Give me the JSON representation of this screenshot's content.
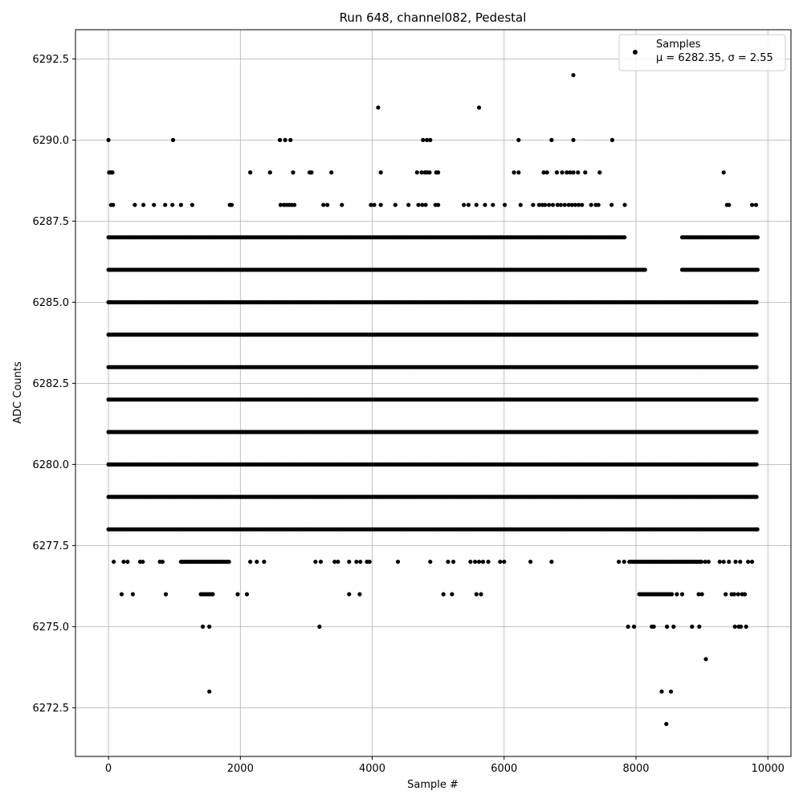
{
  "chart_data": {
    "type": "scatter",
    "title": "Run 648, channel082, Pedestal",
    "xlabel": "Sample #",
    "ylabel": "ADC Counts",
    "xlim": [
      -500,
      10350
    ],
    "ylim": [
      6271,
      6293.4
    ],
    "x_ticks": [
      0,
      2000,
      4000,
      6000,
      8000,
      10000
    ],
    "x_tick_labels": [
      "0",
      "2000",
      "4000",
      "6000",
      "8000",
      "10000"
    ],
    "y_ticks": [
      6272.5,
      6275.0,
      6277.5,
      6280.0,
      6282.5,
      6285.0,
      6287.5,
      6290.0,
      6292.5
    ],
    "y_tick_labels": [
      "6272.5",
      "6275.0",
      "6277.5",
      "6280.0",
      "6282.5",
      "6285.0",
      "6287.5",
      "6290.0",
      "6292.5"
    ],
    "grid": true,
    "legend_position": "top-right",
    "marker_color": "#000000",
    "series": [
      {
        "name": "Samples",
        "stats_label": "μ = 6282.35, σ = 2.55",
        "mean": 6282.35,
        "std": 2.55,
        "x_range": [
          0,
          9850
        ],
        "levels": [
          {
            "y": 6280,
            "spans": [
              [
                0,
                9850
              ]
            ]
          },
          {
            "y": 6281,
            "spans": [
              [
                0,
                9850
              ]
            ]
          },
          {
            "y": 6282,
            "spans": [
              [
                0,
                9850
              ]
            ]
          },
          {
            "y": 6283,
            "spans": [
              [
                0,
                9850
              ]
            ]
          },
          {
            "y": 6284,
            "spans": [
              [
                0,
                9850
              ]
            ]
          },
          {
            "y": 6285,
            "spans": [
              [
                0,
                9850
              ]
            ]
          },
          {
            "y": 6286,
            "spans": [
              [
                0,
                8150
              ],
              [
                8700,
                9850
              ]
            ]
          },
          {
            "y": 6287,
            "spans": [
              [
                0,
                7850
              ],
              [
                8700,
                9850
              ]
            ]
          },
          {
            "y": 6279,
            "spans": [
              [
                0,
                9850
              ]
            ]
          },
          {
            "y": 6278,
            "spans": [
              [
                0,
                9850
              ]
            ]
          },
          {
            "y": 6277,
            "spans": [
              [
                1100,
                1850
              ],
              [
                7900,
                9000
              ]
            ]
          },
          {
            "y": 6276,
            "spans": [
              [
                1400,
                1600
              ],
              [
                8050,
                8550
              ]
            ]
          }
        ],
        "points": [
          [
            0,
            6290
          ],
          [
            980,
            6290
          ],
          [
            2600,
            6290
          ],
          [
            2680,
            6290
          ],
          [
            2760,
            6290
          ],
          [
            4770,
            6290
          ],
          [
            4830,
            6290
          ],
          [
            4880,
            6290
          ],
          [
            6220,
            6290
          ],
          [
            6720,
            6290
          ],
          [
            7050,
            6290
          ],
          [
            7640,
            6290
          ],
          [
            4090,
            6291
          ],
          [
            5620,
            6291
          ],
          [
            7050,
            6292
          ],
          [
            10,
            6289
          ],
          [
            40,
            6289
          ],
          [
            60,
            6289
          ],
          [
            2150,
            6289
          ],
          [
            2450,
            6289
          ],
          [
            2800,
            6289
          ],
          [
            3050,
            6289
          ],
          [
            3080,
            6289
          ],
          [
            3380,
            6289
          ],
          [
            4130,
            6289
          ],
          [
            4680,
            6289
          ],
          [
            4750,
            6289
          ],
          [
            4800,
            6289
          ],
          [
            4830,
            6289
          ],
          [
            4870,
            6289
          ],
          [
            4970,
            6289
          ],
          [
            5000,
            6289
          ],
          [
            6150,
            6289
          ],
          [
            6220,
            6289
          ],
          [
            6600,
            6289
          ],
          [
            6650,
            6289
          ],
          [
            6800,
            6289
          ],
          [
            6880,
            6289
          ],
          [
            6950,
            6289
          ],
          [
            7000,
            6289
          ],
          [
            7050,
            6289
          ],
          [
            7120,
            6289
          ],
          [
            7230,
            6289
          ],
          [
            7450,
            6289
          ],
          [
            9330,
            6289
          ],
          [
            40,
            6288
          ],
          [
            70,
            6288
          ],
          [
            400,
            6288
          ],
          [
            530,
            6288
          ],
          [
            690,
            6288
          ],
          [
            860,
            6288
          ],
          [
            970,
            6288
          ],
          [
            1100,
            6288
          ],
          [
            1270,
            6288
          ],
          [
            1840,
            6288
          ],
          [
            1870,
            6288
          ],
          [
            2610,
            6288
          ],
          [
            2660,
            6288
          ],
          [
            2700,
            6288
          ],
          [
            2740,
            6288
          ],
          [
            2780,
            6288
          ],
          [
            2820,
            6288
          ],
          [
            3260,
            6288
          ],
          [
            3320,
            6288
          ],
          [
            3540,
            6288
          ],
          [
            3980,
            6288
          ],
          [
            4030,
            6288
          ],
          [
            4130,
            6288
          ],
          [
            4350,
            6288
          ],
          [
            4550,
            6288
          ],
          [
            4700,
            6288
          ],
          [
            4760,
            6288
          ],
          [
            4810,
            6288
          ],
          [
            4960,
            6288
          ],
          [
            5000,
            6288
          ],
          [
            5390,
            6288
          ],
          [
            5460,
            6288
          ],
          [
            5580,
            6288
          ],
          [
            5710,
            6288
          ],
          [
            5830,
            6288
          ],
          [
            6010,
            6288
          ],
          [
            6250,
            6288
          ],
          [
            6440,
            6288
          ],
          [
            6530,
            6288
          ],
          [
            6580,
            6288
          ],
          [
            6620,
            6288
          ],
          [
            6680,
            6288
          ],
          [
            6740,
            6288
          ],
          [
            6810,
            6288
          ],
          [
            6860,
            6288
          ],
          [
            6920,
            6288
          ],
          [
            6980,
            6288
          ],
          [
            7030,
            6288
          ],
          [
            7080,
            6288
          ],
          [
            7130,
            6288
          ],
          [
            7180,
            6288
          ],
          [
            7320,
            6288
          ],
          [
            7390,
            6288
          ],
          [
            7430,
            6288
          ],
          [
            7630,
            6288
          ],
          [
            7830,
            6288
          ],
          [
            9380,
            6288
          ],
          [
            9410,
            6288
          ],
          [
            9760,
            6288
          ],
          [
            9820,
            6288
          ],
          [
            80,
            6277
          ],
          [
            230,
            6277
          ],
          [
            290,
            6277
          ],
          [
            480,
            6277
          ],
          [
            520,
            6277
          ],
          [
            780,
            6277
          ],
          [
            820,
            6277
          ],
          [
            2150,
            6277
          ],
          [
            2250,
            6277
          ],
          [
            2360,
            6277
          ],
          [
            3140,
            6277
          ],
          [
            3220,
            6277
          ],
          [
            3430,
            6277
          ],
          [
            3480,
            6277
          ],
          [
            3650,
            6277
          ],
          [
            3760,
            6277
          ],
          [
            3820,
            6277
          ],
          [
            3920,
            6277
          ],
          [
            3960,
            6277
          ],
          [
            4390,
            6277
          ],
          [
            4880,
            6277
          ],
          [
            5150,
            6277
          ],
          [
            5230,
            6277
          ],
          [
            5490,
            6277
          ],
          [
            5560,
            6277
          ],
          [
            5620,
            6277
          ],
          [
            5680,
            6277
          ],
          [
            5760,
            6277
          ],
          [
            5940,
            6277
          ],
          [
            6000,
            6277
          ],
          [
            6400,
            6277
          ],
          [
            6720,
            6277
          ],
          [
            7740,
            6277
          ],
          [
            7820,
            6277
          ],
          [
            9050,
            6277
          ],
          [
            9100,
            6277
          ],
          [
            9270,
            6277
          ],
          [
            9330,
            6277
          ],
          [
            9410,
            6277
          ],
          [
            9510,
            6277
          ],
          [
            9580,
            6277
          ],
          [
            9700,
            6277
          ],
          [
            9760,
            6277
          ],
          [
            200,
            6276
          ],
          [
            370,
            6276
          ],
          [
            870,
            6276
          ],
          [
            1960,
            6276
          ],
          [
            2100,
            6276
          ],
          [
            3650,
            6276
          ],
          [
            3810,
            6276
          ],
          [
            5080,
            6276
          ],
          [
            5210,
            6276
          ],
          [
            5580,
            6276
          ],
          [
            5650,
            6276
          ],
          [
            8620,
            6276
          ],
          [
            8700,
            6276
          ],
          [
            8950,
            6276
          ],
          [
            9000,
            6276
          ],
          [
            9360,
            6276
          ],
          [
            9450,
            6276
          ],
          [
            9490,
            6276
          ],
          [
            9550,
            6276
          ],
          [
            9610,
            6276
          ],
          [
            9650,
            6276
          ],
          [
            1430,
            6275
          ],
          [
            1530,
            6275
          ],
          [
            3200,
            6275
          ],
          [
            7880,
            6275
          ],
          [
            7970,
            6275
          ],
          [
            8240,
            6275
          ],
          [
            8270,
            6275
          ],
          [
            8470,
            6275
          ],
          [
            8570,
            6275
          ],
          [
            8850,
            6275
          ],
          [
            8960,
            6275
          ],
          [
            9500,
            6275
          ],
          [
            9560,
            6275
          ],
          [
            9590,
            6275
          ],
          [
            9670,
            6275
          ],
          [
            9060,
            6274
          ],
          [
            1530,
            6273
          ],
          [
            8390,
            6273
          ],
          [
            8530,
            6273
          ],
          [
            8460,
            6272
          ],
          [
            9840,
            6278
          ]
        ]
      }
    ]
  }
}
